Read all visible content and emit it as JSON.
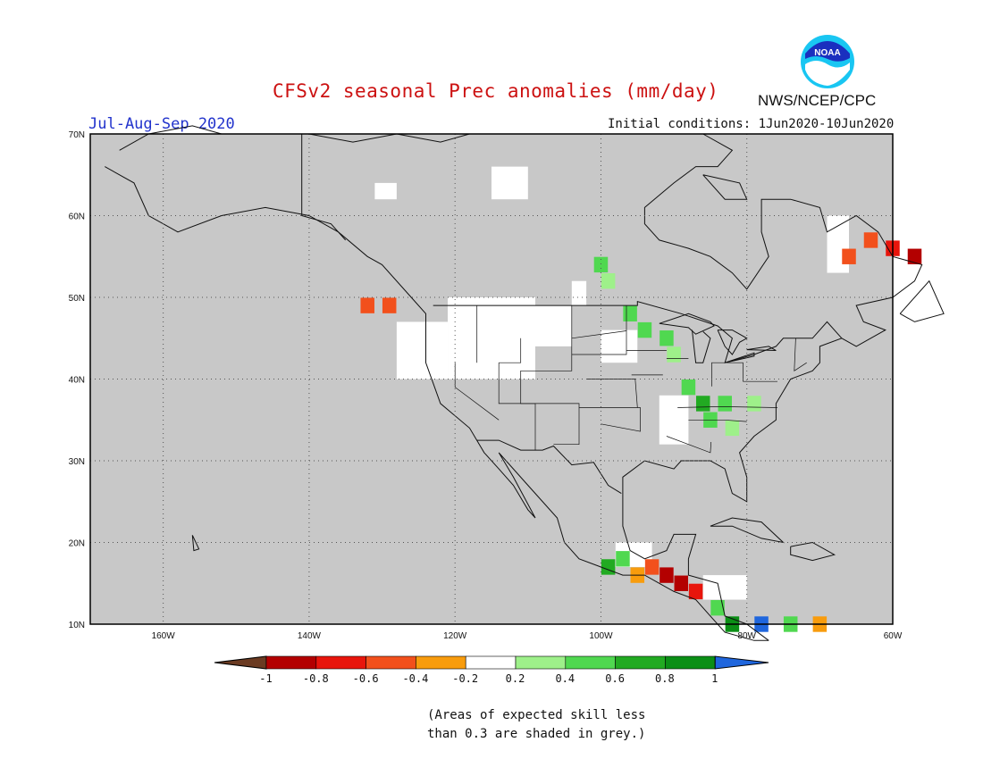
{
  "header": {
    "title": "CFSv2 seasonal Prec anomalies (mm/day)",
    "agency": "NWS/NCEP/CPC",
    "season": "Jul-Aug-Sep 2020",
    "initial_conditions": "Initial conditions: 1Jun2020-10Jun2020",
    "logo_text": "NOAA"
  },
  "map": {
    "lon_range": [
      -170,
      -60
    ],
    "lat_range": [
      10,
      70
    ],
    "grid": true,
    "lat_labels": [
      "70N",
      "60N",
      "50N",
      "40N",
      "30N",
      "20N",
      "10N"
    ],
    "lon_labels": [
      "160W",
      "140W",
      "120W",
      "100W",
      "80W",
      "60W"
    ],
    "colors": {
      "mask_grey": "#c8c8c8",
      "coast": "#111111",
      "plot_border": "#000000"
    },
    "anomaly_cells": [
      {
        "lon": -132,
        "lat": 49,
        "cat": -3
      },
      {
        "lon": -129,
        "lat": 49,
        "cat": -3
      },
      {
        "lon": -100,
        "lat": 54,
        "cat": 2
      },
      {
        "lon": -99,
        "lat": 52,
        "cat": 1
      },
      {
        "lon": -96,
        "lat": 48,
        "cat": 2
      },
      {
        "lon": -94,
        "lat": 46,
        "cat": 2
      },
      {
        "lon": -91,
        "lat": 45,
        "cat": 2
      },
      {
        "lon": -90,
        "lat": 43,
        "cat": 1
      },
      {
        "lon": -88,
        "lat": 39,
        "cat": 2
      },
      {
        "lon": -86,
        "lat": 37,
        "cat": 3
      },
      {
        "lon": -85,
        "lat": 35,
        "cat": 2
      },
      {
        "lon": -83,
        "lat": 37,
        "cat": 2
      },
      {
        "lon": -82,
        "lat": 34,
        "cat": 1
      },
      {
        "lon": -79,
        "lat": 37,
        "cat": 1
      },
      {
        "lon": -63,
        "lat": 57,
        "cat": -3
      },
      {
        "lon": -60,
        "lat": 56,
        "cat": -4
      },
      {
        "lon": -57,
        "lat": 55,
        "cat": -5
      },
      {
        "lon": -66,
        "lat": 55,
        "cat": -3
      },
      {
        "lon": -93,
        "lat": 17,
        "cat": -3
      },
      {
        "lon": -91,
        "lat": 16,
        "cat": -5
      },
      {
        "lon": -89,
        "lat": 15,
        "cat": -5
      },
      {
        "lon": -87,
        "lat": 14,
        "cat": -4
      },
      {
        "lon": -95,
        "lat": 16,
        "cat": -2
      },
      {
        "lon": -97,
        "lat": 18,
        "cat": 2
      },
      {
        "lon": -99,
        "lat": 17,
        "cat": 3
      },
      {
        "lon": -84,
        "lat": 12,
        "cat": 2
      },
      {
        "lon": -82,
        "lat": 10,
        "cat": 4
      },
      {
        "lon": -78,
        "lat": 10,
        "cat": 5
      },
      {
        "lon": -74,
        "lat": 10,
        "cat": 2
      },
      {
        "lon": -70,
        "lat": 10,
        "cat": -2
      }
    ]
  },
  "legend": {
    "ticks": [
      "-1",
      "-0.8",
      "-0.6",
      "-0.4",
      "-0.2",
      "0.2",
      "0.4",
      "0.6",
      "0.8",
      "1"
    ],
    "colors": [
      "#6b3b22",
      "#b30000",
      "#e8150c",
      "#f2501c",
      "#f89c0d",
      "#ffffff",
      "#9ef08a",
      "#50d850",
      "#22aa22",
      "#0b8f16",
      "#1f66dd"
    ]
  },
  "footnote": {
    "line1": "(Areas of expected skill less",
    "line2": "than 0.3 are shaded in grey.)"
  }
}
